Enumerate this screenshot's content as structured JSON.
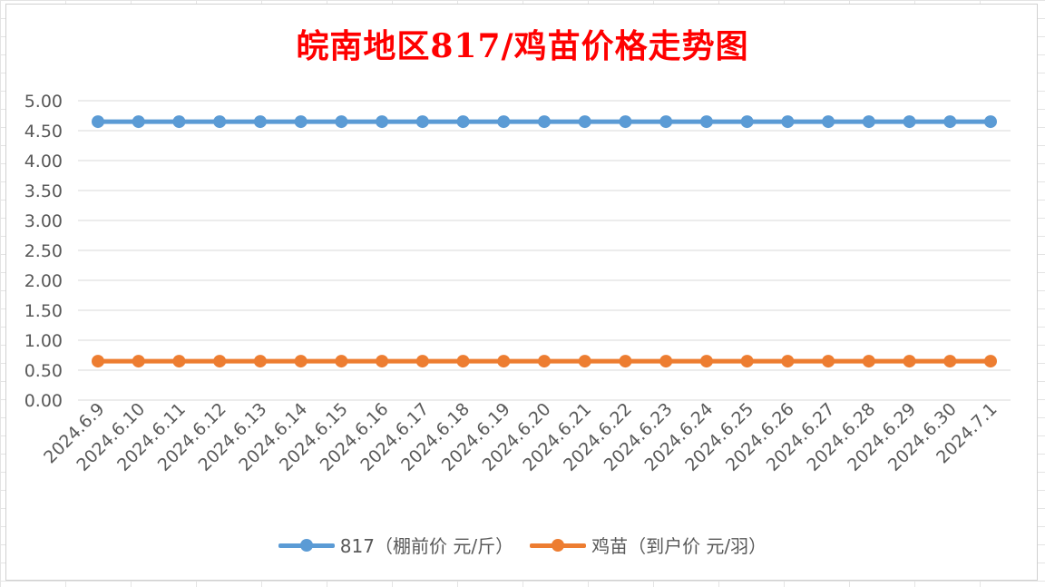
{
  "chart_data": {
    "type": "line",
    "title": "皖南地区817/鸡苗价格走势图",
    "categories": [
      "2024.6.9",
      "2024.6.10",
      "2024.6.11",
      "2024.6.12",
      "2024.6.13",
      "2024.6.14",
      "2024.6.15",
      "2024.6.16",
      "2024.6.17",
      "2024.6.18",
      "2024.6.19",
      "2024.6.20",
      "2024.6.21",
      "2024.6.22",
      "2024.6.23",
      "2024.6.24",
      "2024.6.25",
      "2024.6.26",
      "2024.6.27",
      "2024.6.28",
      "2024.6.29",
      "2024.6.30",
      "2024.7.1"
    ],
    "series": [
      {
        "name": "817（棚前价 元/斤）",
        "color": "#5b9bd5",
        "values": [
          4.65,
          4.65,
          4.65,
          4.65,
          4.65,
          4.65,
          4.65,
          4.65,
          4.65,
          4.65,
          4.65,
          4.65,
          4.65,
          4.65,
          4.65,
          4.65,
          4.65,
          4.65,
          4.65,
          4.65,
          4.65,
          4.65,
          4.65
        ]
      },
      {
        "name": "鸡苗（到户价 元/羽）",
        "color": "#ed7d31",
        "values": [
          0.65,
          0.65,
          0.65,
          0.65,
          0.65,
          0.65,
          0.65,
          0.65,
          0.65,
          0.65,
          0.65,
          0.65,
          0.65,
          0.65,
          0.65,
          0.65,
          0.65,
          0.65,
          0.65,
          0.65,
          0.65,
          0.65,
          0.65
        ]
      }
    ],
    "yticks": [
      "0.00",
      "0.50",
      "1.00",
      "1.50",
      "2.00",
      "2.50",
      "3.00",
      "3.50",
      "4.00",
      "4.50",
      "5.00"
    ],
    "ylim": [
      0,
      5
    ],
    "grid": true,
    "legend_position": "bottom"
  },
  "colors": {
    "title": "#ff0000",
    "grid": "#d9d9d9",
    "axis_text": "#595959"
  }
}
